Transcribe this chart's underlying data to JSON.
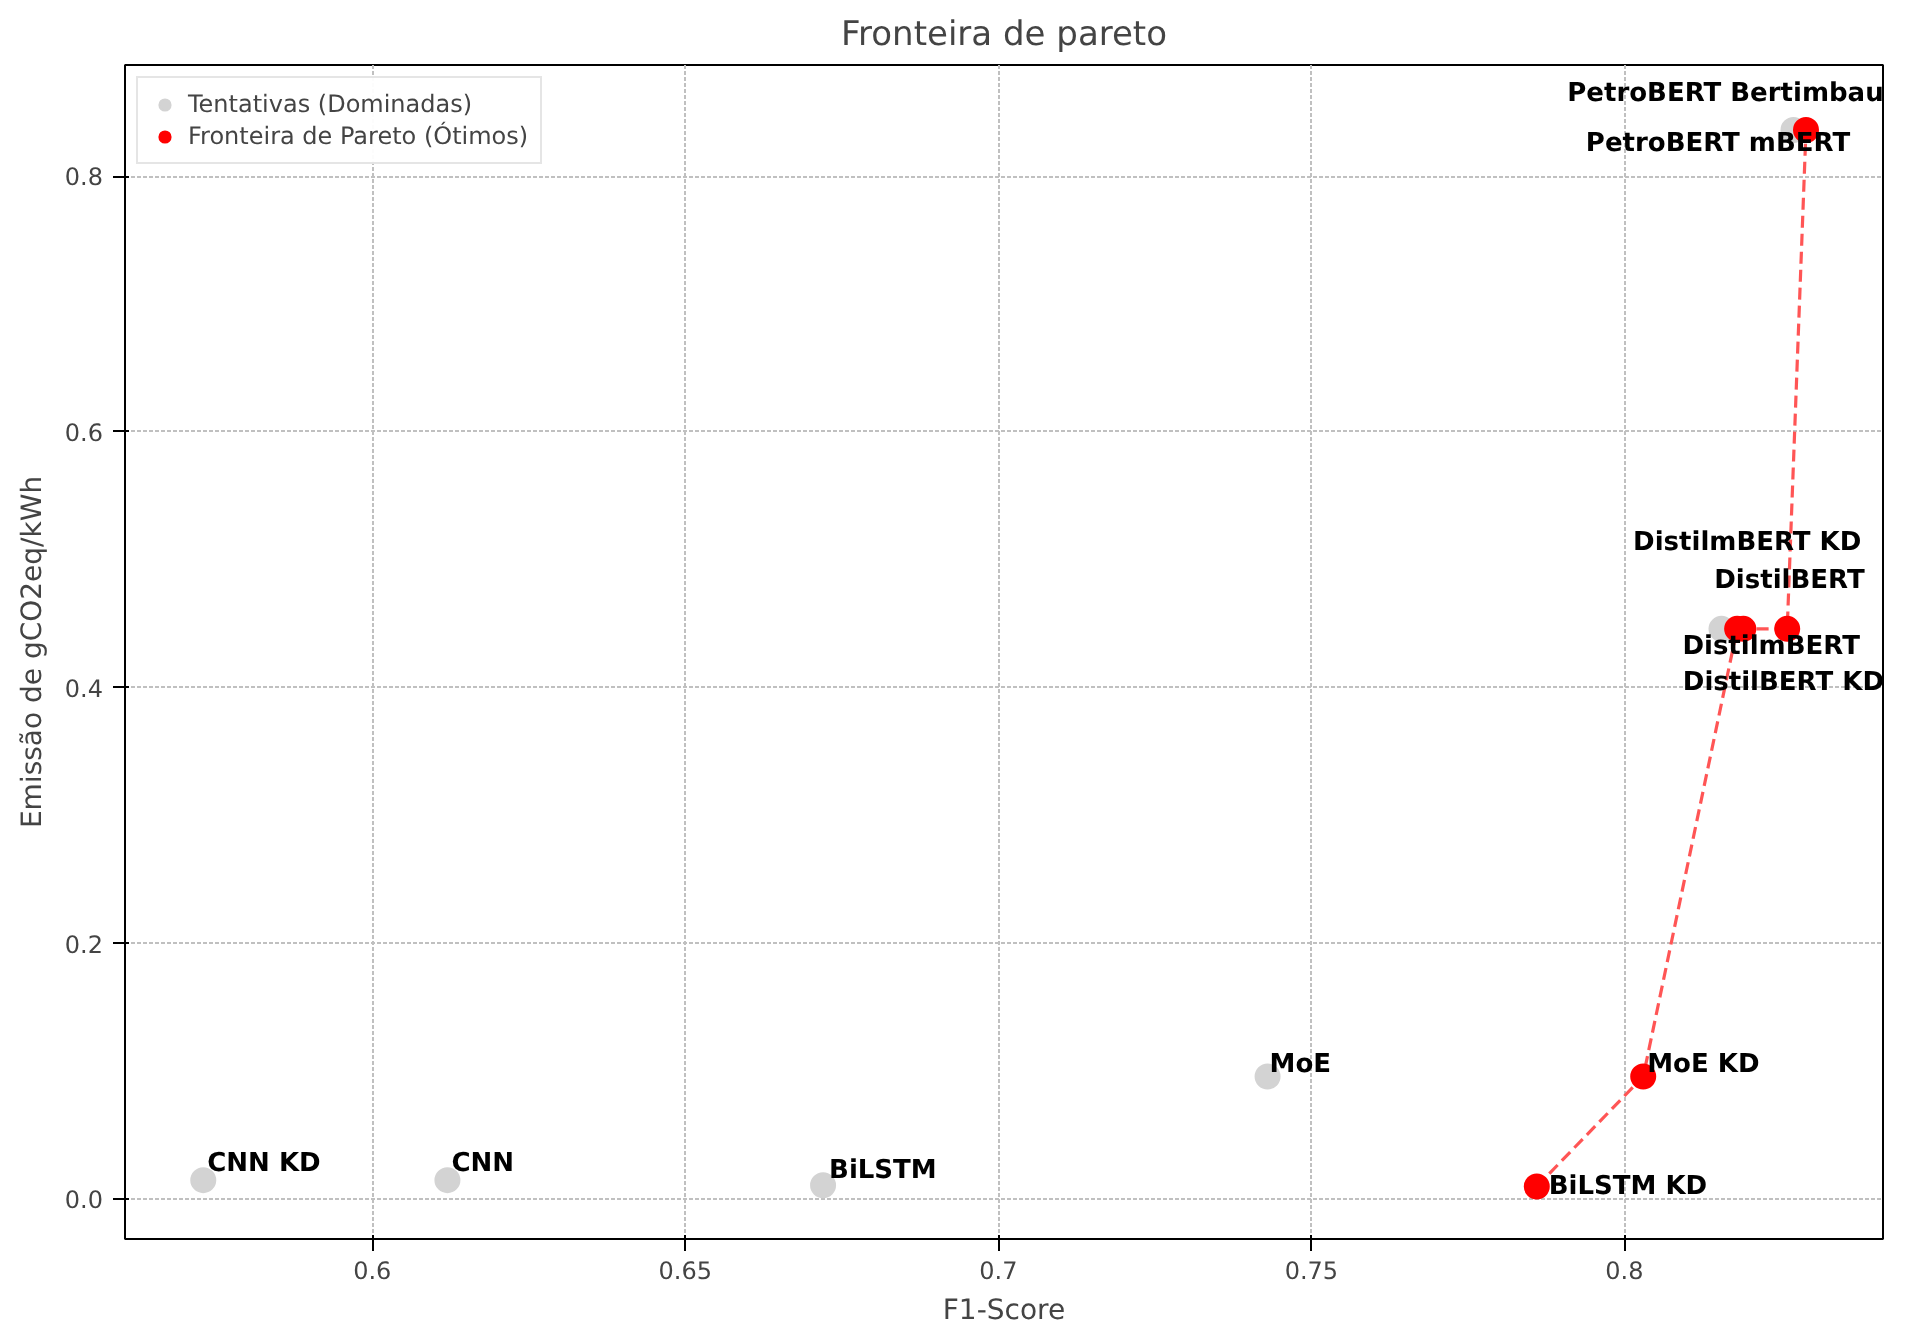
{
  "chart_data": {
    "type": "scatter",
    "title": "Fronteira de pareto",
    "xlabel": "F1-Score",
    "ylabel": "Emissão de gCO2eq/kWh",
    "xlim": [
      0.5605,
      0.8413
    ],
    "ylim": [
      -0.031,
      0.8868
    ],
    "xticks": [
      0.6,
      0.65,
      0.7,
      0.75,
      0.8
    ],
    "yticks": [
      {
        "value": 0,
        "label": "0.0"
      },
      0.2,
      0.4,
      0.6,
      0.8
    ],
    "grid": true,
    "legend": "top left",
    "series": [
      {
        "name": "Tentativas (Dominadas)",
        "color": "#d3d3d3",
        "marker": "circle",
        "x": [
          0.573,
          0.612,
          0.672,
          0.743,
          0.8155,
          0.827
        ],
        "values": [
          0.015,
          0.015,
          0.011,
          0.096,
          0.446,
          0.836
        ]
      },
      {
        "type": "line",
        "color": "#ff5555",
        "line_style": "dashed",
        "x": [
          0.786,
          0.803,
          0.818,
          0.819,
          0.826,
          0.829
        ],
        "values": [
          0.01,
          0.096,
          0.446,
          0.446,
          0.446,
          0.836
        ]
      },
      {
        "name": "Fronteira de Pareto (Ótimos)",
        "color": "#ff0000",
        "marker": "circle",
        "x": [
          0.786,
          0.803,
          0.818,
          0.819,
          0.826,
          0.829
        ],
        "values": [
          0.01,
          0.096,
          0.446,
          0.446,
          0.446,
          0.836
        ]
      }
    ],
    "annotations": [
      {
        "text": "CNN KD",
        "x": 0.573,
        "y": 0.015
      },
      {
        "text": "CNN",
        "x": 0.612,
        "y": 0.015
      },
      {
        "text": "BiLSTM",
        "x": 0.672,
        "y": 0.011
      },
      {
        "text": "MoE",
        "x": 0.743,
        "y": 0.096
      },
      {
        "text": "MoE KD",
        "x": 0.803,
        "y": 0.096
      },
      {
        "text": "BiLSTM KD",
        "x": 0.786,
        "y": 0.01
      },
      {
        "text": "PetroBERT Bertimbau",
        "x": 0.827,
        "y": 0.836
      },
      {
        "text": "PetroBERT mBERT",
        "x": 0.829,
        "y": 0.836
      },
      {
        "text": "DistilmBERT KD",
        "x": 0.826,
        "y": 0.446
      },
      {
        "text": "DistilBERT",
        "x": 0.8155,
        "y": 0.446
      },
      {
        "text": "DistilmBERT",
        "x": 0.818,
        "y": 0.446
      },
      {
        "text": "DistilBERT KD",
        "x": 0.819,
        "y": 0.446
      }
    ]
  }
}
